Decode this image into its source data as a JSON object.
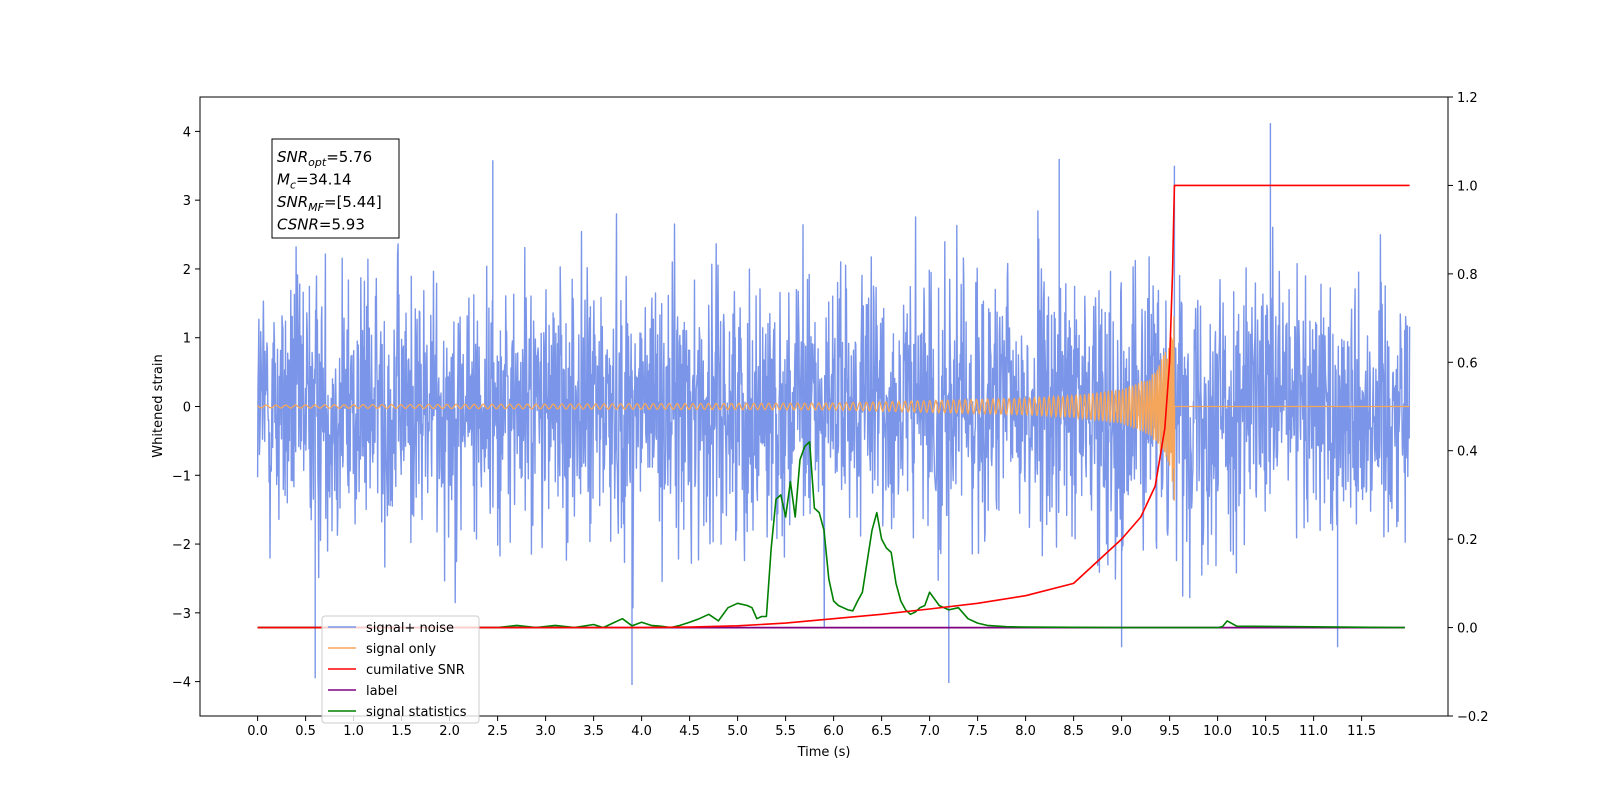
{
  "chart_data": {
    "type": "line",
    "title": "",
    "xlabel": "Time (s)",
    "ylabel": "Whitened strain",
    "y2label": "",
    "xlim": [
      -0.6,
      12.4
    ],
    "ylim": [
      -4.5,
      4.5
    ],
    "y2lim": [
      -0.2,
      1.2
    ],
    "x_ticks": [
      0.0,
      0.5,
      1.0,
      1.5,
      2.0,
      2.5,
      3.0,
      3.5,
      4.0,
      4.5,
      5.0,
      5.5,
      6.0,
      6.5,
      7.0,
      7.5,
      8.0,
      8.5,
      9.0,
      9.5,
      10.0,
      10.5,
      11.0,
      11.5
    ],
    "x_tick_labels": [
      "0.0",
      "0.5",
      "1.0",
      "1.5",
      "2.0",
      "2.5",
      "3.0",
      "3.5",
      "4.0",
      "4.5",
      "5.0",
      "5.5",
      "6.0",
      "6.5",
      "7.0",
      "7.5",
      "8.0",
      "8.5",
      "9.0",
      "9.5",
      "10.0",
      "10.5",
      "11.0",
      "11.5"
    ],
    "y_ticks": [
      -4,
      -3,
      -2,
      -1,
      0,
      1,
      2,
      3,
      4
    ],
    "y_tick_labels": [
      "−4",
      "−3",
      "−2",
      "−1",
      "0",
      "1",
      "2",
      "3",
      "4"
    ],
    "y2_ticks": [
      -0.2,
      0.0,
      0.2,
      0.4,
      0.6,
      0.8,
      1.0,
      1.2
    ],
    "y2_tick_labels": [
      "−0.2",
      "0.0",
      "0.2",
      "0.4",
      "0.6",
      "0.8",
      "1.0",
      "1.2"
    ],
    "grid": false,
    "legend_placement": "lower-left",
    "stats_box": [
      {
        "base": "SNR",
        "sub": "opt",
        "value": "=5.76"
      },
      {
        "base": "M",
        "sub": "c",
        "value": "=34.14"
      },
      {
        "base": "SNR",
        "sub": "MF",
        "value": "=[5.44]"
      },
      {
        "base": "CSNR",
        "sub": "",
        "value": "=5.93"
      }
    ],
    "series": [
      {
        "name": "signal+ noise",
        "axis": "left",
        "color": "#7b96e8",
        "kind": "noise",
        "x_range": [
          0.0,
          12.0
        ],
        "amplitude_sigma": 1.0,
        "peaks": [
          [
            0.6,
            -3.95
          ],
          [
            2.45,
            3.58
          ],
          [
            3.9,
            -4.05
          ],
          [
            7.2,
            -4.02
          ],
          [
            8.35,
            3.6
          ],
          [
            9.0,
            -3.5
          ],
          [
            9.55,
            3.5
          ],
          [
            10.55,
            4.12
          ],
          [
            11.25,
            -3.5
          ]
        ]
      },
      {
        "name": "signal only",
        "axis": "left",
        "color": "#f5a65b",
        "kind": "chirp",
        "x": [
          0.0,
          6.0,
          8.0,
          8.5,
          9.0,
          9.3,
          9.5,
          9.55,
          12.0
        ],
        "envelope": [
          0.02,
          0.05,
          0.12,
          0.16,
          0.25,
          0.42,
          0.9,
          1.4,
          0.0
        ]
      },
      {
        "name": "cumilative SNR",
        "axis": "right",
        "color": "#ff0000",
        "x": [
          0.0,
          4.0,
          4.5,
          5.0,
          5.5,
          6.0,
          6.5,
          7.0,
          7.5,
          8.0,
          8.5,
          9.0,
          9.2,
          9.35,
          9.45,
          9.5,
          9.53,
          9.55,
          12.0
        ],
        "y": [
          0.0,
          0.0,
          0.001,
          0.004,
          0.01,
          0.02,
          0.03,
          0.042,
          0.055,
          0.072,
          0.1,
          0.2,
          0.25,
          0.32,
          0.45,
          0.6,
          0.8,
          1.0,
          1.0
        ]
      },
      {
        "name": "label",
        "axis": "right",
        "color": "#800080",
        "x": [
          0.0,
          11.95
        ],
        "y": [
          0.0,
          0.0
        ]
      },
      {
        "name": "signal statistics",
        "axis": "right",
        "color": "#008000",
        "x": [
          0.0,
          2.5,
          2.7,
          2.9,
          3.1,
          3.3,
          3.5,
          3.6,
          3.7,
          3.8,
          3.9,
          4.0,
          4.1,
          4.2,
          4.3,
          4.4,
          4.5,
          4.6,
          4.7,
          4.8,
          4.9,
          5.0,
          5.1,
          5.15,
          5.2,
          5.25,
          5.3,
          5.35,
          5.4,
          5.45,
          5.5,
          5.55,
          5.6,
          5.65,
          5.7,
          5.75,
          5.8,
          5.85,
          5.9,
          5.95,
          6.0,
          6.05,
          6.1,
          6.15,
          6.2,
          6.25,
          6.3,
          6.35,
          6.4,
          6.45,
          6.5,
          6.55,
          6.6,
          6.65,
          6.7,
          6.75,
          6.8,
          6.85,
          6.9,
          6.95,
          7.0,
          7.1,
          7.2,
          7.3,
          7.4,
          7.5,
          7.6,
          7.8,
          8.0,
          9.0,
          9.5,
          10.0,
          10.05,
          10.1,
          10.2,
          11.95
        ],
        "y": [
          0.0,
          0.0,
          0.005,
          0.0,
          0.005,
          0.0,
          0.007,
          0.0,
          0.01,
          0.02,
          0.004,
          0.012,
          0.005,
          0.003,
          0.0,
          0.005,
          0.012,
          0.02,
          0.03,
          0.015,
          0.045,
          0.055,
          0.05,
          0.045,
          0.02,
          0.025,
          0.025,
          0.18,
          0.29,
          0.3,
          0.25,
          0.33,
          0.25,
          0.38,
          0.41,
          0.42,
          0.27,
          0.26,
          0.22,
          0.11,
          0.06,
          0.05,
          0.045,
          0.04,
          0.038,
          0.06,
          0.08,
          0.15,
          0.22,
          0.26,
          0.2,
          0.18,
          0.17,
          0.1,
          0.06,
          0.04,
          0.03,
          0.035,
          0.045,
          0.05,
          0.08,
          0.05,
          0.04,
          0.045,
          0.02,
          0.01,
          0.005,
          0.002,
          0.001,
          0.0,
          0.0,
          0.0,
          0.002,
          0.015,
          0.003,
          0.0
        ]
      }
    ]
  }
}
